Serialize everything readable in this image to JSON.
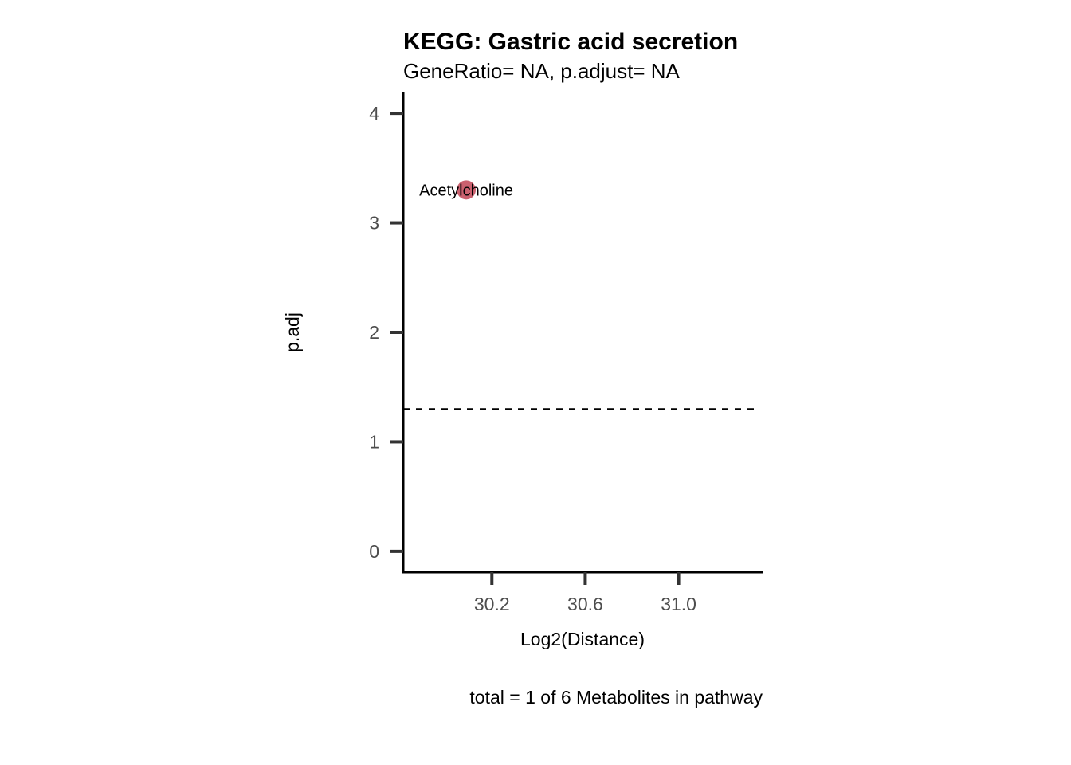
{
  "chart_data": {
    "type": "scatter",
    "title": "KEGG: Gastric acid secretion",
    "subtitle": "GeneRatio= NA, p.adjust= NA",
    "xlabel": "Log2(Distance)",
    "ylabel": "p.adj",
    "caption": "total = 1 of 6 Metabolites in pathway",
    "xlim": [
      29.82,
      31.36
    ],
    "ylim": [
      -0.19,
      4.19
    ],
    "xticks": [
      30.2,
      30.6,
      31.0
    ],
    "xtick_labels": [
      "30.2",
      "30.6",
      "31.0"
    ],
    "yticks": [
      0,
      1,
      2,
      3,
      4
    ],
    "ytick_labels": [
      "0",
      "1",
      "2",
      "3",
      "4"
    ],
    "threshold_line": {
      "y": 1.3,
      "style": "dashed"
    },
    "points": [
      {
        "label": "Acetylcholine",
        "x": 30.09,
        "y": 3.3,
        "color": "#c4505f"
      }
    ],
    "grid": false,
    "legend": "none"
  }
}
